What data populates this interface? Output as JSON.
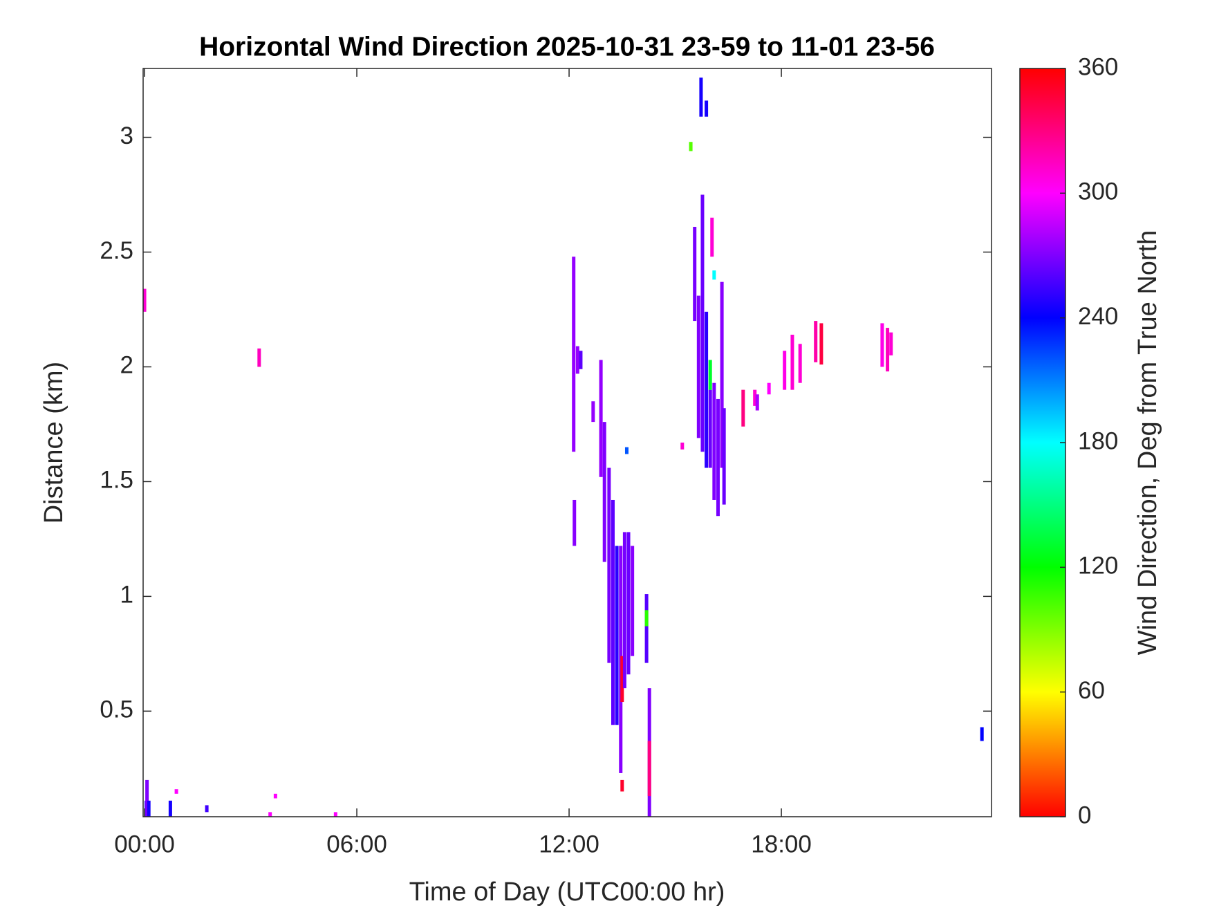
{
  "chart_data": {
    "type": "heatmap",
    "title": "Horizontal Wind Direction 2025-10-31 23-59 to 11-01 23-56",
    "x_label": "Time of Day (UTC00:00 hr)",
    "y_label": "Distance (km)",
    "colorbar_label": "Wind Direction, Deg from True North",
    "xlim": [
      -0.04,
      23.94
    ],
    "xticks": [
      {
        "value": 0,
        "label": "00:00"
      },
      {
        "value": 6,
        "label": "06:00"
      },
      {
        "value": 12,
        "label": "12:00"
      },
      {
        "value": 18,
        "label": "18:00"
      }
    ],
    "ylim": [
      0.04,
      3.3
    ],
    "yticks": [
      0.5,
      1,
      1.5,
      2,
      2.5,
      3
    ],
    "clim": [
      0,
      360
    ],
    "cticks": [
      0,
      60,
      120,
      180,
      240,
      300,
      360
    ],
    "colormap": "hsv",
    "cells": {
      "x": [
        0,
        3.24,
        0.05,
        0.07,
        0.12,
        0.73,
        0.9,
        1.76,
        3.55,
        3.7,
        5.4,
        12.13,
        12.15,
        12.24,
        12.33,
        12.68,
        12.9,
        13.0,
        13.13,
        13.24,
        13.35,
        13.46,
        13.5,
        13.5,
        13.57,
        13.63,
        13.68,
        13.79,
        14.19,
        14.19,
        14.27,
        14.27,
        15.2,
        15.44,
        15.73,
        15.88,
        15.55,
        15.66,
        15.77,
        15.88,
        15.99,
        15.99,
        16.04,
        16.1,
        16.21,
        16.32,
        16.38,
        16.1,
        16.92,
        17.25,
        17.32,
        17.65,
        18.09,
        18.31,
        18.53,
        18.97,
        19.13,
        20.85,
        21.0,
        21.1,
        23.67
      ],
      "y_start": [
        2.24,
        2.0,
        0.04,
        0.04,
        0.04,
        0.04,
        0.14,
        0.06,
        0.04,
        0.12,
        0.04,
        1.63,
        1.22,
        1.97,
        1.99,
        1.76,
        1.52,
        1.15,
        0.71,
        0.44,
        0.44,
        0.23,
        0.54,
        0.15,
        0.6,
        1.62,
        0.66,
        0.74,
        0.71,
        0.87,
        0.04,
        0.13,
        1.64,
        2.94,
        3.09,
        3.09,
        2.2,
        1.69,
        1.63,
        1.56,
        1.56,
        1.9,
        2.48,
        1.42,
        1.35,
        1.56,
        1.4,
        2.38,
        1.74,
        1.83,
        1.81,
        1.88,
        1.9,
        1.9,
        1.93,
        2.02,
        2.01,
        2.0,
        1.98,
        2.05,
        0.37
      ],
      "y_end": [
        2.34,
        2.08,
        0.11,
        0.2,
        0.11,
        0.11,
        0.16,
        0.09,
        0.06,
        0.14,
        0.06,
        2.48,
        1.42,
        2.09,
        2.07,
        1.85,
        2.03,
        1.76,
        1.56,
        1.42,
        1.22,
        1.22,
        0.74,
        0.2,
        1.28,
        1.65,
        1.28,
        1.22,
        1.01,
        0.94,
        0.6,
        0.37,
        1.67,
        2.98,
        3.26,
        3.16,
        2.61,
        2.31,
        2.75,
        2.24,
        1.9,
        2.03,
        2.65,
        1.93,
        1.86,
        2.37,
        1.82,
        2.42,
        1.9,
        1.9,
        1.88,
        1.93,
        2.07,
        2.14,
        2.1,
        2.2,
        2.19,
        2.19,
        2.17,
        2.15,
        0.43
      ],
      "values": [
        310,
        315,
        250,
        270,
        245,
        245,
        300,
        255,
        300,
        300,
        300,
        275,
        272,
        275,
        262,
        275,
        275,
        270,
        268,
        262,
        250,
        272,
        350,
        350,
        268,
        220,
        265,
        272,
        260,
        110,
        270,
        330,
        310,
        100,
        245,
        245,
        268,
        270,
        265,
        250,
        265,
        130,
        310,
        270,
        268,
        272,
        265,
        180,
        330,
        310,
        280,
        300,
        305,
        310,
        310,
        320,
        345,
        305,
        315,
        310,
        240
      ]
    }
  }
}
